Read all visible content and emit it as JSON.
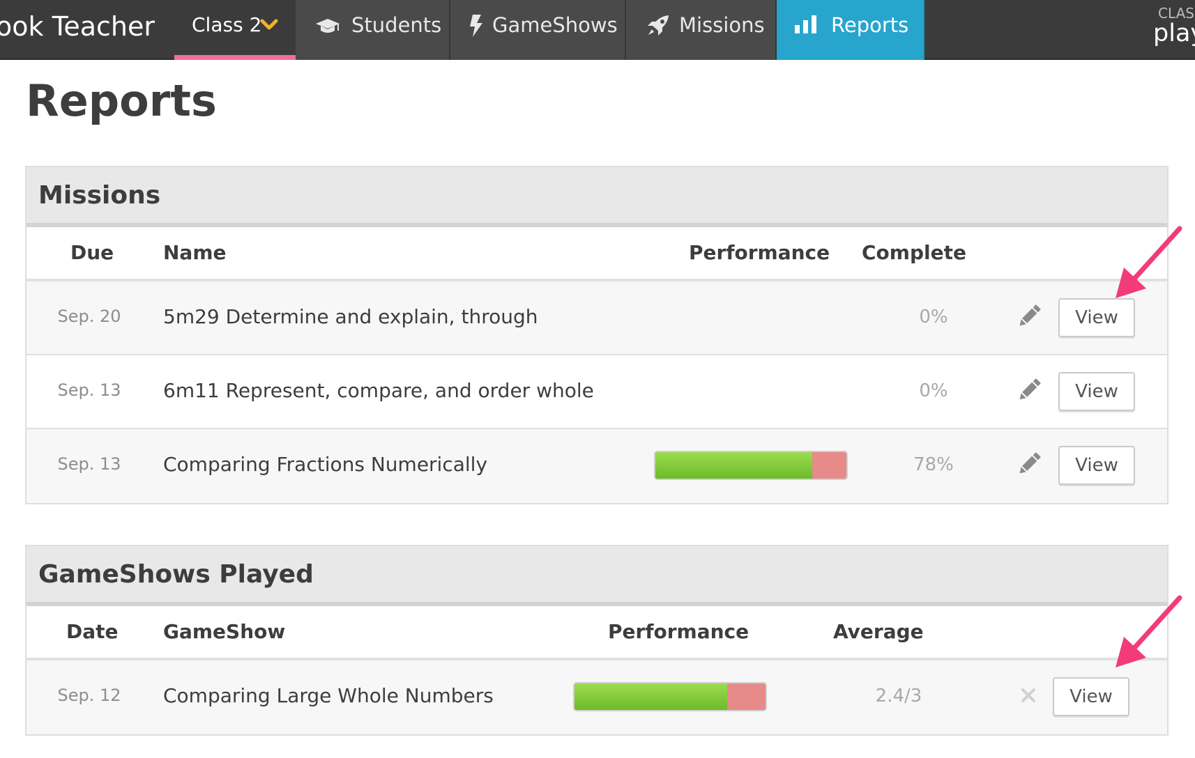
{
  "nav": {
    "brand": "hook Teacher",
    "class_selector": "Class 2",
    "tabs": [
      {
        "label": "Students",
        "icon": "graduation-cap-icon"
      },
      {
        "label": "GameShows",
        "icon": "lightning-icon"
      },
      {
        "label": "Missions",
        "icon": "rocket-icon"
      },
      {
        "label": "Reports",
        "icon": "bar-chart-icon"
      }
    ],
    "class_code_caption": "CLASS",
    "class_code": "play"
  },
  "page": {
    "title": "Reports"
  },
  "missions": {
    "title": "Missions",
    "columns": {
      "due": "Due",
      "name": "Name",
      "performance": "Performance",
      "complete": "Complete"
    },
    "rows": [
      {
        "due": "Sep. 20",
        "name": "5m29 Determine and explain, through",
        "performance": null,
        "complete": "0%",
        "action": "View"
      },
      {
        "due": "Sep. 13",
        "name": "6m11 Represent, compare, and order whole",
        "performance": null,
        "complete": "0%",
        "action": "View"
      },
      {
        "due": "Sep. 13",
        "name": "Comparing Fractions Numerically",
        "performance": 0.82,
        "complete": "78%",
        "action": "View"
      }
    ]
  },
  "gameshows": {
    "title": "GameShows Played",
    "columns": {
      "date": "Date",
      "gameshow": "GameShow",
      "performance": "Performance",
      "average": "Average"
    },
    "rows": [
      {
        "date": "Sep. 12",
        "gameshow": "Comparing Large Whole Numbers",
        "performance": 0.8,
        "average": "2.4/3",
        "action": "View"
      }
    ]
  },
  "colors": {
    "nav_bg": "#3b3b3b",
    "tab_active": "#27a5cc",
    "class_underline": "#ef6f96",
    "bar_good": "#7ec93a",
    "bar_bad": "#e78a8a",
    "annotation_arrow": "#f23b78"
  }
}
